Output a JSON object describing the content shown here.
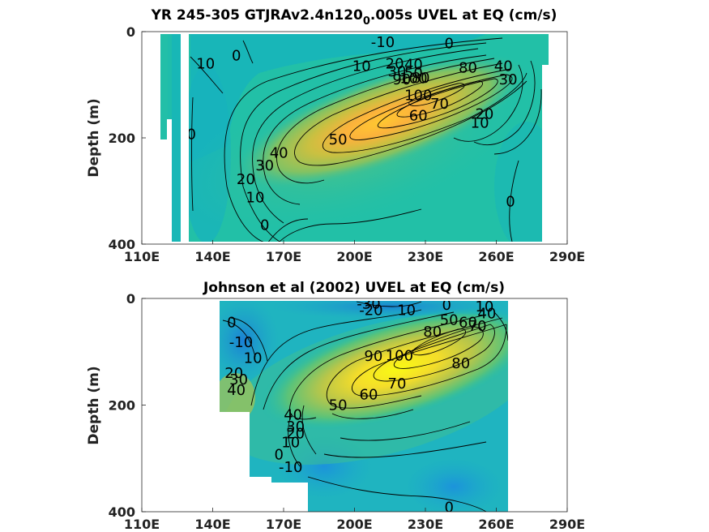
{
  "chart_data": [
    {
      "type": "heatmap",
      "title_main": "YR 245-305 GTJRAv2.4n120",
      "title_sub": "0",
      "title_tail": ".005s UVEL at EQ (cm/s)",
      "ylabel": "Depth (m)",
      "xlim": [
        110,
        290
      ],
      "ylim": [
        0,
        400
      ],
      "y_reversed": true,
      "xticks": [
        "110E",
        "140E",
        "170E",
        "200E",
        "230E",
        "260E",
        "290E"
      ],
      "yticks": [
        "0",
        "200",
        "400"
      ],
      "data_extent": {
        "x": [
          118,
          280
        ],
        "depth": [
          0,
          400
        ]
      },
      "core": {
        "lon": 220,
        "depth": 135,
        "max": 105
      },
      "contour_labels": [
        {
          "text": "-10",
          "lon": 212,
          "depth": 20
        },
        {
          "text": "0",
          "lon": 240,
          "depth": 22
        },
        {
          "text": "10",
          "lon": 137,
          "depth": 60
        },
        {
          "text": "0",
          "lon": 150,
          "depth": 45
        },
        {
          "text": "10",
          "lon": 203,
          "depth": 65
        },
        {
          "text": "20",
          "lon": 217,
          "depth": 60
        },
        {
          "text": "40",
          "lon": 225,
          "depth": 62
        },
        {
          "text": "30",
          "lon": 218,
          "depth": 75
        },
        {
          "text": "50",
          "lon": 225,
          "depth": 78
        },
        {
          "text": "80",
          "lon": 248,
          "depth": 68
        },
        {
          "text": "40",
          "lon": 263,
          "depth": 65
        },
        {
          "text": "90",
          "lon": 220,
          "depth": 90
        },
        {
          "text": "100",
          "lon": 225,
          "depth": 88
        },
        {
          "text": "80",
          "lon": 228,
          "depth": 87
        },
        {
          "text": "30",
          "lon": 265,
          "depth": 90
        },
        {
          "text": "100",
          "lon": 227,
          "depth": 120
        },
        {
          "text": "70",
          "lon": 236,
          "depth": 136
        },
        {
          "text": "60",
          "lon": 227,
          "depth": 158
        },
        {
          "text": "20",
          "lon": 255,
          "depth": 155
        },
        {
          "text": "10",
          "lon": 253,
          "depth": 172
        },
        {
          "text": "50",
          "lon": 193,
          "depth": 203
        },
        {
          "text": "0",
          "lon": 131,
          "depth": 193
        },
        {
          "text": "40",
          "lon": 168,
          "depth": 228
        },
        {
          "text": "30",
          "lon": 162,
          "depth": 252
        },
        {
          "text": "20",
          "lon": 154,
          "depth": 278
        },
        {
          "text": "10",
          "lon": 158,
          "depth": 312
        },
        {
          "text": "0",
          "lon": 266,
          "depth": 320
        },
        {
          "text": "0",
          "lon": 162,
          "depth": 364
        }
      ]
    },
    {
      "type": "heatmap",
      "title_main": "Johnson et al (2002) UVEL at EQ (cm/s)",
      "ylabel": "Depth (m)",
      "xlim": [
        110,
        290
      ],
      "ylim": [
        0,
        400
      ],
      "y_reversed": true,
      "xticks": [
        "110E",
        "140E",
        "170E",
        "200E",
        "230E",
        "260E",
        "290E"
      ],
      "yticks": [
        "0",
        "200",
        "400"
      ],
      "data_extent": {
        "x": [
          143,
          266
        ],
        "depth": [
          0,
          400
        ]
      },
      "core": {
        "lon": 232,
        "depth": 110,
        "max": 100
      },
      "contour_labels": [
        {
          "text": "-30",
          "lon": 206,
          "depth": 10
        },
        {
          "text": "-20",
          "lon": 207,
          "depth": 22
        },
        {
          "text": "10",
          "lon": 222,
          "depth": 22
        },
        {
          "text": "0",
          "lon": 239,
          "depth": 12
        },
        {
          "text": "10",
          "lon": 255,
          "depth": 15
        },
        {
          "text": "50",
          "lon": 240,
          "depth": 40
        },
        {
          "text": "40",
          "lon": 256,
          "depth": 28
        },
        {
          "text": "60",
          "lon": 248,
          "depth": 45
        },
        {
          "text": "70",
          "lon": 252,
          "depth": 52
        },
        {
          "text": "80",
          "lon": 233,
          "depth": 62
        },
        {
          "text": "0",
          "lon": 148,
          "depth": 45
        },
        {
          "text": "-10",
          "lon": 152,
          "depth": 82
        },
        {
          "text": "90",
          "lon": 208,
          "depth": 108
        },
        {
          "text": "100",
          "lon": 219,
          "depth": 107
        },
        {
          "text": "80",
          "lon": 245,
          "depth": 122
        },
        {
          "text": "10",
          "lon": 157,
          "depth": 112
        },
        {
          "text": "20",
          "lon": 149,
          "depth": 140
        },
        {
          "text": "70",
          "lon": 218,
          "depth": 160
        },
        {
          "text": "60",
          "lon": 206,
          "depth": 180
        },
        {
          "text": "30",
          "lon": 151,
          "depth": 152
        },
        {
          "text": "40",
          "lon": 150,
          "depth": 172
        },
        {
          "text": "50",
          "lon": 193,
          "depth": 200
        },
        {
          "text": "40",
          "lon": 174,
          "depth": 218
        },
        {
          "text": "30",
          "lon": 175,
          "depth": 240
        },
        {
          "text": "20",
          "lon": 175,
          "depth": 253
        },
        {
          "text": "10",
          "lon": 173,
          "depth": 270
        },
        {
          "text": "0",
          "lon": 168,
          "depth": 293
        },
        {
          "text": "-10",
          "lon": 173,
          "depth": 316
        },
        {
          "text": "0",
          "lon": 240,
          "depth": 392
        }
      ]
    }
  ]
}
